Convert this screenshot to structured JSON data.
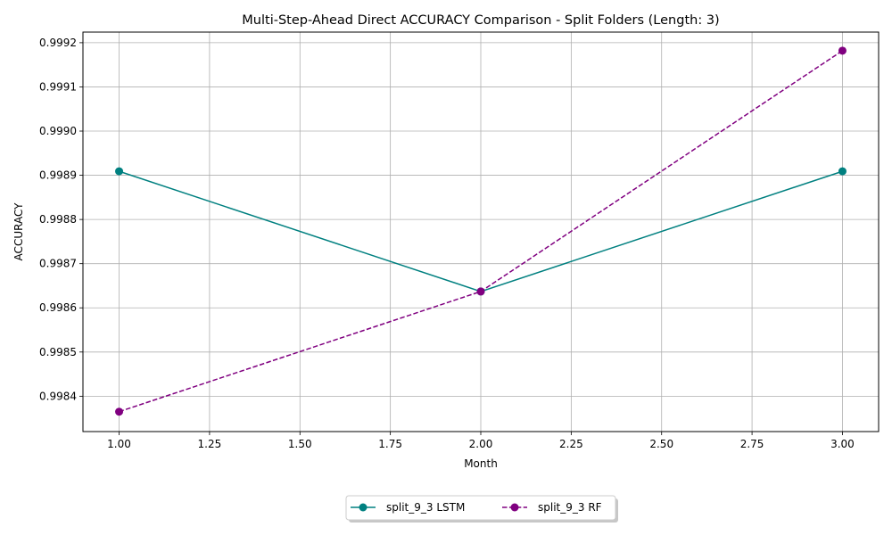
{
  "chart_data": {
    "type": "line",
    "title": "Multi-Step-Ahead Direct ACCURACY Comparison - Split Folders (Length: 3)",
    "xlabel": "Month",
    "ylabel": "ACCURACY",
    "xlim": [
      0.9,
      3.1
    ],
    "ylim": [
      0.99832,
      0.999224
    ],
    "xticks": [
      1.0,
      1.25,
      1.5,
      1.75,
      2.0,
      2.25,
      2.5,
      2.75,
      3.0
    ],
    "xtick_labels": [
      "1.00",
      "1.25",
      "1.50",
      "1.75",
      "2.00",
      "2.25",
      "2.50",
      "2.75",
      "3.00"
    ],
    "yticks": [
      0.9984,
      0.9985,
      0.9986,
      0.9987,
      0.9988,
      0.9989,
      0.999,
      0.9991,
      0.9992
    ],
    "ytick_labels": [
      "0.9984",
      "0.9985",
      "0.9986",
      "0.9987",
      "0.9988",
      "0.9989",
      "0.9990",
      "0.9991",
      "0.9992"
    ],
    "grid": true,
    "legend_position": "bottom-center, below plot",
    "series": [
      {
        "name": "split_9_3 LSTM",
        "color": "#008080",
        "line_style": "solid",
        "marker": "circle",
        "x": [
          1,
          2,
          3
        ],
        "y": [
          0.998909,
          0.998637,
          0.998909
        ]
      },
      {
        "name": "split_9_3 RF",
        "color": "#800080",
        "line_style": "dashed",
        "marker": "circle",
        "x": [
          1,
          2,
          3
        ],
        "y": [
          0.998365,
          0.998637,
          0.999182
        ]
      }
    ]
  }
}
